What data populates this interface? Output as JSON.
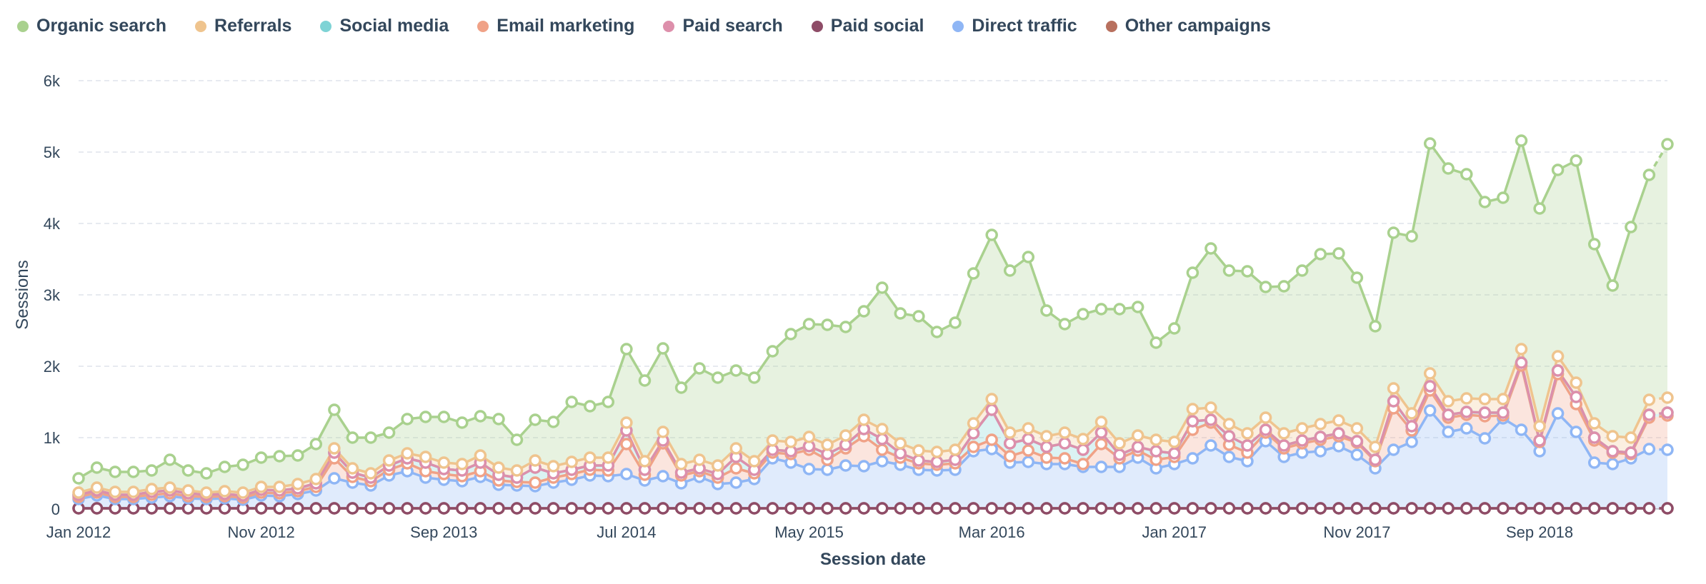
{
  "chart_data": {
    "type": "area",
    "stacked": true,
    "xlabel": "Session date",
    "ylabel": "Sessions",
    "ylim": [
      0,
      6000
    ],
    "y_ticks": [
      {
        "value": 0,
        "label": "0"
      },
      {
        "value": 1000,
        "label": "1k"
      },
      {
        "value": 2000,
        "label": "2k"
      },
      {
        "value": 3000,
        "label": "3k"
      },
      {
        "value": 4000,
        "label": "4k"
      },
      {
        "value": 5000,
        "label": "5k"
      },
      {
        "value": 6000,
        "label": "6k"
      }
    ],
    "x_ticks": [
      {
        "index": 0,
        "label": "Jan 2012"
      },
      {
        "index": 10,
        "label": "Nov 2012"
      },
      {
        "index": 20,
        "label": "Sep 2013"
      },
      {
        "index": 30,
        "label": "Jul 2014"
      },
      {
        "index": 40,
        "label": "May 2015"
      },
      {
        "index": 50,
        "label": "Mar 2016"
      },
      {
        "index": 60,
        "label": "Jan 2017"
      },
      {
        "index": 70,
        "label": "Nov 2017"
      },
      {
        "index": 80,
        "label": "Sep 2018"
      }
    ],
    "grid": true,
    "legend_position": "top-left",
    "x_start": "Jan 2012",
    "x_interval": "month",
    "series": [
      {
        "name": "Other campaigns",
        "color": "#b8705e",
        "values": [
          10,
          10,
          10,
          10,
          10,
          10,
          10,
          10,
          10,
          10,
          10,
          10,
          10,
          10,
          10,
          10,
          10,
          10,
          10,
          10,
          10,
          10,
          10,
          10,
          10,
          10,
          10,
          10,
          10,
          10,
          10,
          10,
          10,
          10,
          10,
          10,
          10,
          10,
          10,
          10,
          10,
          10,
          10,
          10,
          10,
          10,
          10,
          10,
          10,
          10,
          10,
          10,
          10,
          10,
          10,
          10,
          10,
          10,
          10,
          10,
          10,
          10,
          10,
          10,
          10,
          10,
          10,
          10,
          10,
          10,
          10,
          10,
          10,
          10,
          10,
          10,
          10,
          10,
          10,
          10,
          10,
          10,
          10,
          10,
          10,
          10,
          10,
          10
        ]
      },
      {
        "name": "Paid social",
        "color": "#8e4c67",
        "values": [
          0,
          0,
          0,
          0,
          0,
          0,
          0,
          0,
          0,
          0,
          0,
          0,
          0,
          0,
          0,
          0,
          0,
          0,
          0,
          0,
          0,
          0,
          0,
          0,
          0,
          0,
          0,
          0,
          0,
          0,
          0,
          0,
          0,
          0,
          0,
          0,
          0,
          0,
          0,
          0,
          0,
          0,
          0,
          0,
          0,
          0,
          0,
          0,
          0,
          0,
          0,
          0,
          0,
          0,
          0,
          0,
          0,
          0,
          0,
          0,
          0,
          0,
          0,
          0,
          0,
          0,
          0,
          0,
          0,
          0,
          0,
          0,
          0,
          0,
          0,
          0,
          0,
          0,
          0,
          0,
          0,
          0,
          0,
          0,
          0,
          0,
          0,
          0
        ]
      },
      {
        "name": "Direct traffic",
        "color": "#8fb6f5",
        "values": [
          130,
          180,
          130,
          130,
          150,
          170,
          140,
          130,
          140,
          120,
          180,
          170,
          200,
          250,
          420,
          360,
          320,
          460,
          520,
          430,
          400,
          380,
          440,
          330,
          320,
          310,
          360,
          400,
          460,
          450,
          480,
          390,
          450,
          350,
          440,
          340,
          360,
          410,
          700,
          640,
          550,
          540,
          600,
          590,
          660,
          610,
          540,
          530,
          540,
          800,
          830,
          640,
          650,
          620,
          620,
          580,
          580,
          580,
          710,
          560,
          620,
          700,
          880,
          720,
          660,
          940,
          720,
          780,
          800,
          870,
          750,
          560,
          820,
          930,
          1370,
          1070,
          1120,
          980,
          1260,
          1100,
          800,
          1330,
          1070,
          640,
          620,
          700,
          830,
          820
        ]
      },
      {
        "name": "Email marketing",
        "color": "#f0a287",
        "values": [
          30,
          40,
          30,
          30,
          40,
          40,
          30,
          30,
          30,
          30,
          40,
          40,
          40,
          50,
          280,
          80,
          60,
          80,
          110,
          90,
          80,
          70,
          80,
          60,
          50,
          50,
          70,
          80,
          80,
          80,
          420,
          80,
          460,
          110,
          80,
          90,
          200,
          80,
          80,
          120,
          270,
          140,
          240,
          420,
          160,
          100,
          90,
          80,
          90,
          60,
          130,
          90,
          160,
          90,
          80,
          40,
          320,
          120,
          100,
          120,
          100,
          400,
          320,
          170,
          120,
          120,
          120,
          130,
          160,
          140,
          170,
          100,
          580,
          160,
          280,
          200,
          190,
          310,
          40,
          900,
          130,
          550,
          390,
          310,
          160,
          60,
          440,
          480
        ]
      },
      {
        "name": "Social media",
        "color": "#7ed3d5",
        "values": [
          30,
          30,
          30,
          30,
          40,
          40,
          40,
          30,
          30,
          30,
          40,
          40,
          40,
          50,
          80,
          60,
          50,
          60,
          70,
          120,
          70,
          80,
          120,
          80,
          60,
          210,
          60,
          60,
          60,
          70,
          190,
          70,
          40,
          40,
          40,
          50,
          160,
          50,
          40,
          40,
          50,
          80,
          50,
          100,
          150,
          60,
          40,
          40,
          50,
          190,
          420,
          180,
          160,
          150,
          210,
          200,
          160,
          50,
          50,
          120,
          50,
          120,
          40,
          120,
          100,
          40,
          40,
          40,
          40,
          40,
          20,
          20,
          100,
          60,
          60,
          40,
          40,
          50,
          40,
          40,
          20,
          50,
          100,
          40,
          20,
          20,
          40,
          40
        ]
      },
      {
        "name": "Paid search",
        "color": "#dd8fab",
        "values": [
          0,
          0,
          0,
          0,
          0,
          0,
          0,
          0,
          0,
          0,
          0,
          0,
          0,
          0,
          0,
          0,
          0,
          0,
          0,
          0,
          0,
          0,
          0,
          0,
          0,
          0,
          0,
          0,
          0,
          0,
          0,
          0,
          0,
          0,
          0,
          0,
          0,
          0,
          0,
          0,
          0,
          0,
          0,
          0,
          0,
          0,
          0,
          0,
          0,
          0,
          0,
          0,
          0,
          0,
          0,
          0,
          0,
          0,
          0,
          0,
          0,
          0,
          0,
          0,
          0,
          0,
          0,
          0,
          0,
          0,
          0,
          0,
          0,
          0,
          0,
          0,
          0,
          0,
          0,
          0,
          0,
          0,
          0,
          0,
          0,
          0,
          0,
          0
        ]
      },
      {
        "name": "Referrals",
        "color": "#efc48e",
        "values": [
          30,
          40,
          40,
          40,
          40,
          40,
          40,
          30,
          40,
          40,
          40,
          50,
          60,
          60,
          60,
          60,
          60,
          70,
          70,
          80,
          90,
          90,
          100,
          100,
          100,
          100,
          100,
          110,
          110,
          110,
          110,
          120,
          120,
          120,
          120,
          120,
          120,
          120,
          130,
          130,
          130,
          130,
          130,
          130,
          140,
          140,
          140,
          140,
          140,
          140,
          150,
          150,
          150,
          150,
          150,
          150,
          150,
          160,
          160,
          160,
          160,
          170,
          170,
          170,
          170,
          170,
          170,
          170,
          180,
          180,
          180,
          180,
          180,
          180,
          180,
          190,
          190,
          190,
          190,
          190,
          200,
          200,
          200,
          200,
          210,
          210,
          210,
          210
        ]
      },
      {
        "name": "Organic search",
        "color": "#a9d18e",
        "values": [
          200,
          280,
          280,
          280,
          260,
          390,
          280,
          270,
          340,
          390,
          410,
          430,
          400,
          490,
          540,
          430,
          500,
          390,
          480,
          560,
          640,
          580,
          550,
          680,
          430,
          570,
          620,
          840,
          720,
          780,
          1030,
          1130,
          1170,
          1070,
          1280,
          1230,
          1090,
          1170,
          1250,
          1510,
          1580,
          1680,
          1520,
          1520,
          1980,
          1820,
          1880,
          1680,
          1780,
          2100,
          2300,
          2270,
          2400,
          1760,
          1520,
          1750,
          1580,
          1880,
          1800,
          1360,
          1590,
          1910,
          2230,
          2150,
          2270,
          1830,
          2060,
          2210,
          2380,
          2340,
          2110,
          1690,
          2180,
          2480,
          3220,
          3260,
          3140,
          2760,
          2820,
          2920,
          3050,
          2610,
          3110,
          2510,
          2110,
          2950,
          3150,
          3550
        ]
      }
    ]
  }
}
